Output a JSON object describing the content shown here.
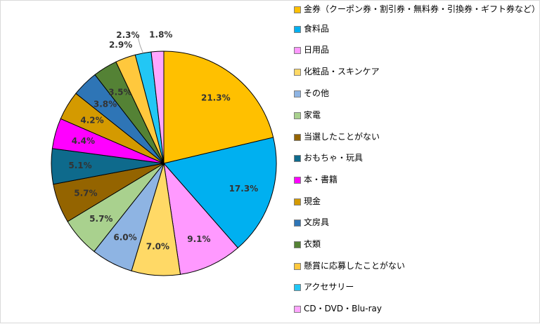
{
  "chart_data": {
    "type": "pie",
    "title": "",
    "slices": [
      {
        "label": "金券（クーポン券・割引券・無料券・引換券・ギフト券など）",
        "value": 21.3,
        "value_label": "21.3%",
        "color": "#FFC000"
      },
      {
        "label": "食料品",
        "value": 17.3,
        "value_label": "17.3%",
        "color": "#00B0F0"
      },
      {
        "label": "日用品",
        "value": 9.1,
        "value_label": "9.1%",
        "color": "#FF99FF"
      },
      {
        "label": "化粧品・スキンケア",
        "value": 7.0,
        "value_label": "7.0%",
        "color": "#FFD966"
      },
      {
        "label": "その他",
        "value": 6.0,
        "value_label": "6.0%",
        "color": "#8EB4E3"
      },
      {
        "label": "家電",
        "value": 5.7,
        "value_label": "5.7%",
        "color": "#A9D18E"
      },
      {
        "label": "当選したことがない",
        "value": 5.7,
        "value_label": "5.7%",
        "color": "#946400"
      },
      {
        "label": "おもちゃ・玩具",
        "value": 5.1,
        "value_label": "5.1%",
        "color": "#0E6A8C"
      },
      {
        "label": "本・書籍",
        "value": 4.4,
        "value_label": "4.4%",
        "color": "#FF00FF"
      },
      {
        "label": "現金",
        "value": 4.2,
        "value_label": "4.2%",
        "color": "#D49A00"
      },
      {
        "label": "文房具",
        "value": 3.8,
        "value_label": "3.8%",
        "color": "#2E75B6"
      },
      {
        "label": "衣類",
        "value": 3.5,
        "value_label": "3.5%",
        "color": "#548235"
      },
      {
        "label": "懸賞に応募したことがない",
        "value": 2.9,
        "value_label": "2.9%",
        "color": "#FFC83D"
      },
      {
        "label": "アクセサリー",
        "value": 2.3,
        "value_label": "2.3%",
        "color": "#22C7F5"
      },
      {
        "label": "CD・DVD・Blu-ray",
        "value": 1.8,
        "value_label": "1.8%",
        "color": "#FFA6FF"
      }
    ],
    "start_angle": "12 o'clock",
    "direction": "clockwise",
    "legend_position": "right",
    "data_labels": "percent"
  }
}
